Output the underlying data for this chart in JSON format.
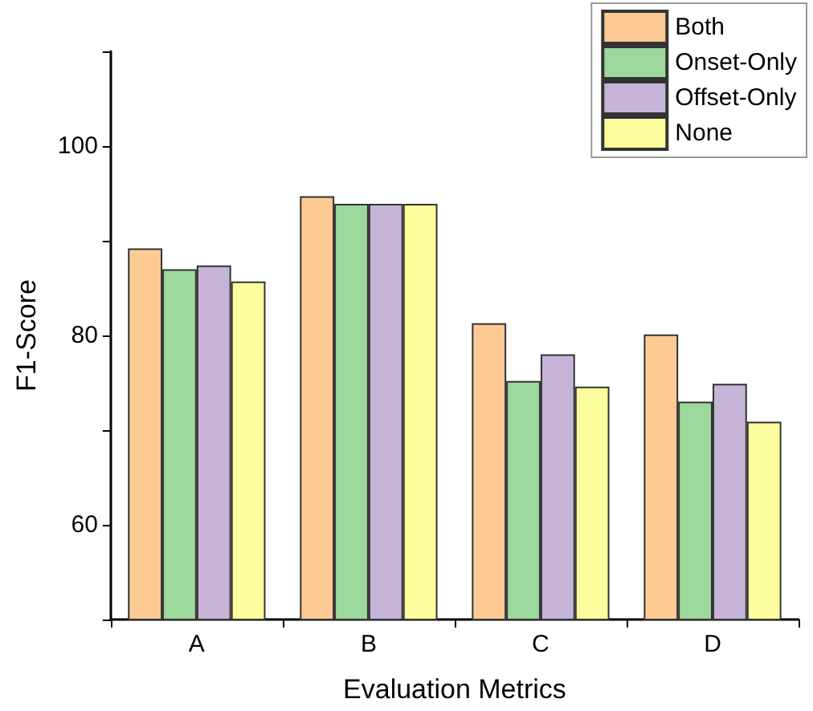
{
  "chart_data": {
    "type": "bar",
    "xlabel": "Evaluation Metrics",
    "ylabel": "F1-Score",
    "categories": [
      "A",
      "B",
      "C",
      "D"
    ],
    "series": [
      {
        "name": "Both",
        "color": "#fdca93",
        "values": [
          89.2,
          94.7,
          81.3,
          80.1
        ]
      },
      {
        "name": "Onset-Only",
        "color": "#9dd89c",
        "values": [
          87.0,
          93.9,
          75.2,
          73.0
        ]
      },
      {
        "name": "Offset-Only",
        "color": "#c5b4d8",
        "values": [
          87.4,
          93.9,
          78.0,
          74.9
        ]
      },
      {
        "name": "None",
        "color": "#fefe9e",
        "values": [
          85.7,
          93.9,
          74.6,
          70.9
        ]
      }
    ],
    "ylim": [
      50,
      110
    ],
    "yticks": [
      {
        "value": 50,
        "label": null
      },
      60,
      {
        "value": 70,
        "label": null
      },
      80,
      {
        "value": 90,
        "label": null
      },
      100,
      {
        "value": 110,
        "label": null
      }
    ],
    "grid": false,
    "legend": "top right"
  }
}
